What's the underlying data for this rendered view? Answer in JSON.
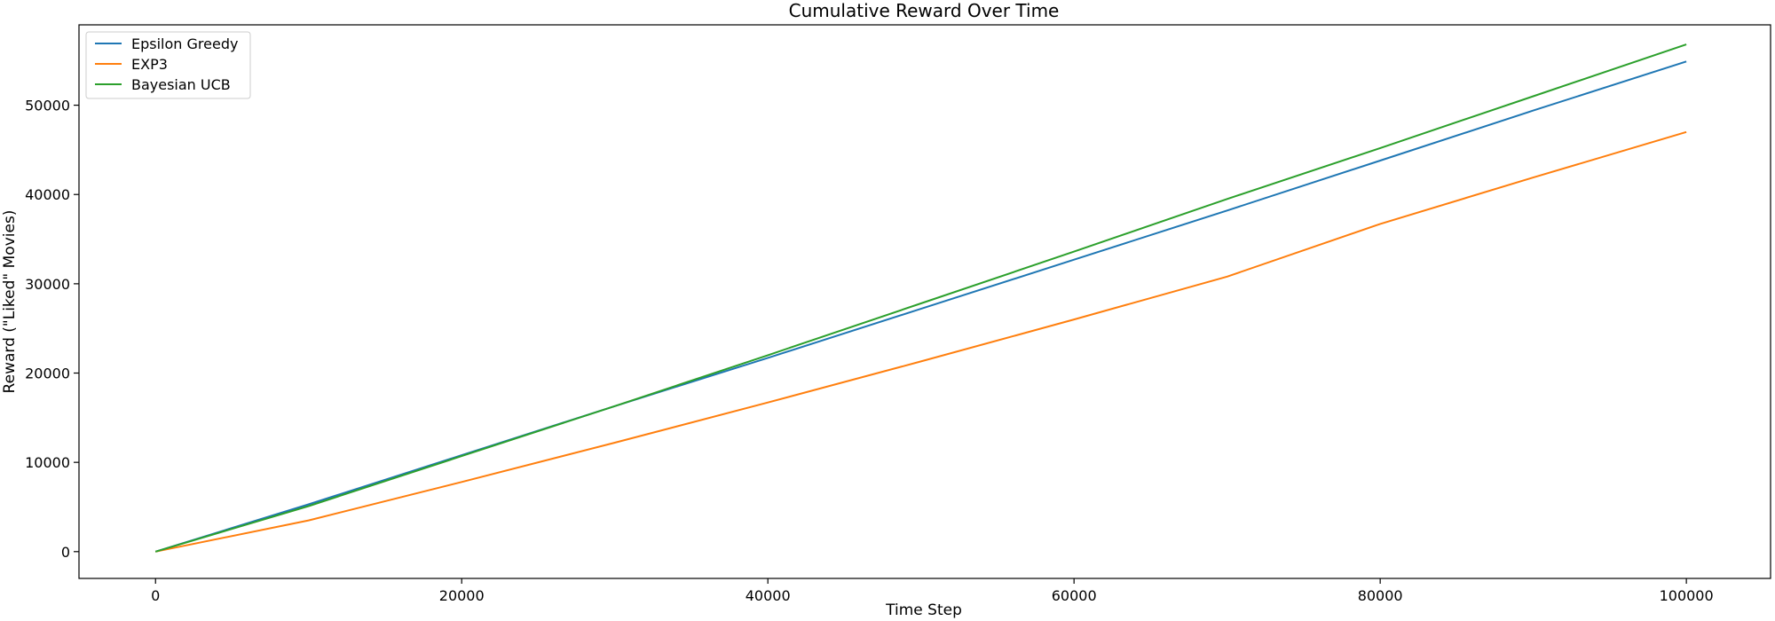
{
  "chart_data": {
    "type": "line",
    "title": "Cumulative Reward Over Time",
    "xlabel": "Time Step",
    "ylabel": "Reward (\"Liked\" Movies)",
    "xlim": [
      -5000,
      105500
    ],
    "ylim": [
      -3000,
      59000
    ],
    "xticks": [
      0,
      20000,
      40000,
      60000,
      80000,
      100000
    ],
    "yticks": [
      0,
      10000,
      20000,
      30000,
      40000,
      50000
    ],
    "grid": false,
    "legend_position": "top-left",
    "series": [
      {
        "name": "Epsilon Greedy",
        "color": "#1f77b4",
        "points": [
          [
            0,
            0
          ],
          [
            10000,
            5300
          ],
          [
            20000,
            10800
          ],
          [
            30000,
            16300
          ],
          [
            40000,
            21700
          ],
          [
            50000,
            27200
          ],
          [
            60000,
            32700
          ],
          [
            70000,
            38200
          ],
          [
            80000,
            43800
          ],
          [
            90000,
            49400
          ],
          [
            100000,
            54900
          ]
        ]
      },
      {
        "name": "EXP3",
        "color": "#ff7f0e",
        "points": [
          [
            0,
            0
          ],
          [
            10000,
            3500
          ],
          [
            20000,
            7800
          ],
          [
            30000,
            12200
          ],
          [
            40000,
            16700
          ],
          [
            50000,
            21300
          ],
          [
            60000,
            26000
          ],
          [
            70000,
            30800
          ],
          [
            80000,
            36700
          ],
          [
            90000,
            41900
          ],
          [
            100000,
            47000
          ]
        ]
      },
      {
        "name": "Bayesian UCB",
        "color": "#2ca02c",
        "points": [
          [
            0,
            0
          ],
          [
            10000,
            5100
          ],
          [
            20000,
            10700
          ],
          [
            30000,
            16300
          ],
          [
            40000,
            22000
          ],
          [
            50000,
            27800
          ],
          [
            60000,
            33600
          ],
          [
            70000,
            39500
          ],
          [
            80000,
            45200
          ],
          [
            90000,
            51000
          ],
          [
            100000,
            56800
          ]
        ]
      }
    ]
  }
}
